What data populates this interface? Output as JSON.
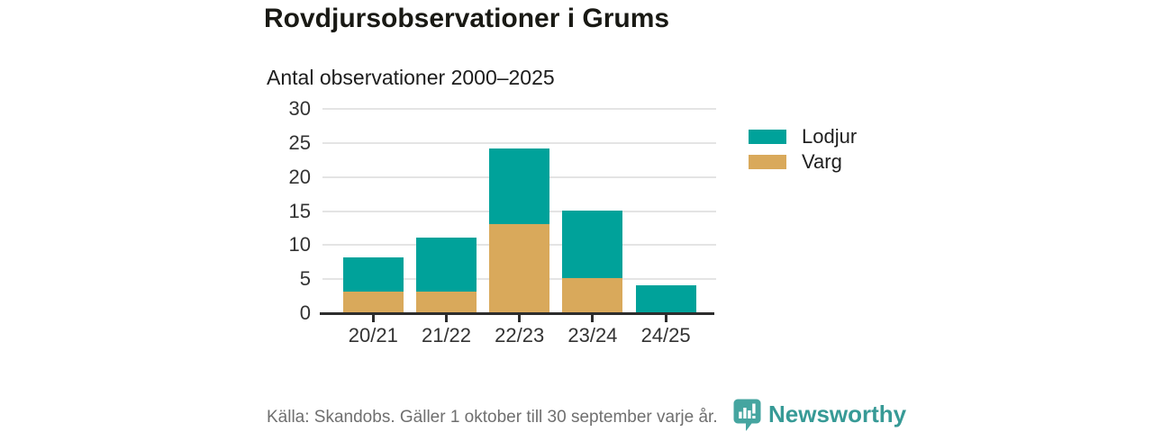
{
  "header": {
    "title": "Rovdjursobservationer i Grums",
    "subtitle": "Antal observationer 2000–2025"
  },
  "chart_data": {
    "type": "bar",
    "stacked": true,
    "title": "Rovdjursobservationer i Grums",
    "subtitle": "Antal observationer 2000–2025",
    "xlabel": "",
    "ylabel": "",
    "categories": [
      "20/21",
      "21/22",
      "22/23",
      "23/24",
      "24/25"
    ],
    "series": [
      {
        "name": "Varg",
        "color": "#D9A95B",
        "values": [
          3,
          3,
          13,
          5,
          0
        ]
      },
      {
        "name": "Lodjur",
        "color": "#00A29A",
        "values": [
          5,
          8,
          11,
          10,
          4
        ]
      }
    ],
    "stack_totals": [
      8,
      11,
      24,
      15,
      4
    ],
    "ylim": [
      0,
      30
    ],
    "yticks": [
      0,
      5,
      10,
      15,
      20,
      25,
      30
    ],
    "grid": true,
    "legend_position": "right"
  },
  "legend": {
    "items": [
      {
        "label": "Lodjur",
        "color": "#00A29A"
      },
      {
        "label": "Varg",
        "color": "#D9A95B"
      }
    ]
  },
  "footer": {
    "source": "Källa: Skandobs. Gäller 1 oktober till 30 september varje år.",
    "brand": "Newsworthy"
  },
  "colors": {
    "bar_teal": "#00A29A",
    "bar_gold": "#D9A95B",
    "gridline": "#e4e4e4",
    "axis": "#2d2d2d",
    "title_text": "#191914",
    "axis_text": "#333333",
    "source_text": "#6f6f6f",
    "brand_teal": "#379a96",
    "logo_teal": "#45a5a0",
    "background": "#ffffff"
  }
}
